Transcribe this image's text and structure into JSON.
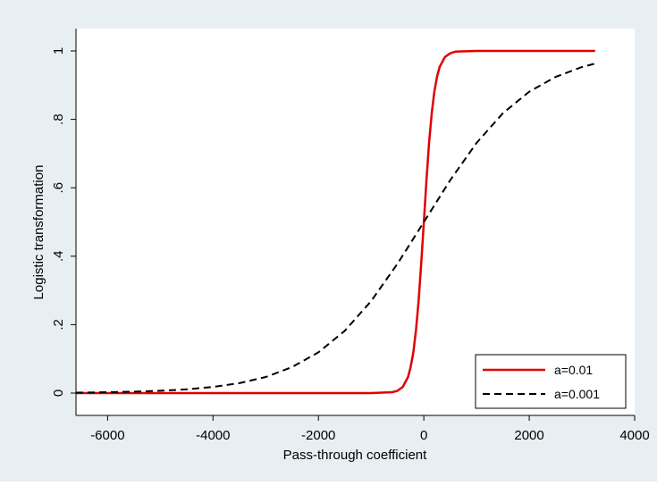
{
  "chart_data": {
    "type": "line",
    "title": "",
    "xlabel": "Pass-through coefficient",
    "ylabel": "Logistic transformation",
    "xlim": [
      -6600,
      4000
    ],
    "ylim": [
      0,
      1
    ],
    "x_ticks": [
      -6000,
      -4000,
      -2000,
      0,
      2000,
      4000
    ],
    "x_tick_labels": [
      "-6000",
      "-4000",
      "-2000",
      "0",
      "2000",
      "4000"
    ],
    "y_ticks": [
      0,
      0.2,
      0.4,
      0.6,
      0.8,
      1
    ],
    "y_tick_labels": [
      "0",
      ".2",
      ".4",
      ".6",
      ".8",
      "1"
    ],
    "grid": false,
    "legend_position": "bottom-right",
    "background_color": "#e8eff2",
    "series": [
      {
        "name": "a=0.01",
        "color": "#e00000",
        "style": "solid",
        "x": [
          -6600,
          -2000,
          -1000,
          -600,
          -500,
          -400,
          -300,
          -250,
          -200,
          -150,
          -100,
          -50,
          0,
          50,
          100,
          150,
          200,
          250,
          300,
          400,
          500,
          600,
          1000,
          2000,
          3250
        ],
        "y": [
          0,
          0,
          0,
          0.0025,
          0.0067,
          0.018,
          0.047,
          0.076,
          0.119,
          0.182,
          0.269,
          0.378,
          0.5,
          0.622,
          0.731,
          0.818,
          0.881,
          0.924,
          0.953,
          0.982,
          0.993,
          0.998,
          1,
          1,
          1
        ]
      },
      {
        "name": "a=0.001",
        "color": "#000000",
        "style": "dashed",
        "x": [
          -6600,
          -6000,
          -5500,
          -5000,
          -4500,
          -4000,
          -3500,
          -3000,
          -2500,
          -2000,
          -1500,
          -1000,
          -500,
          0,
          500,
          1000,
          1500,
          2000,
          2500,
          3000,
          3250
        ],
        "y": [
          0.0014,
          0.0025,
          0.0041,
          0.0067,
          0.011,
          0.018,
          0.029,
          0.047,
          0.076,
          0.119,
          0.182,
          0.269,
          0.378,
          0.5,
          0.622,
          0.731,
          0.818,
          0.881,
          0.924,
          0.953,
          0.963
        ]
      }
    ]
  }
}
